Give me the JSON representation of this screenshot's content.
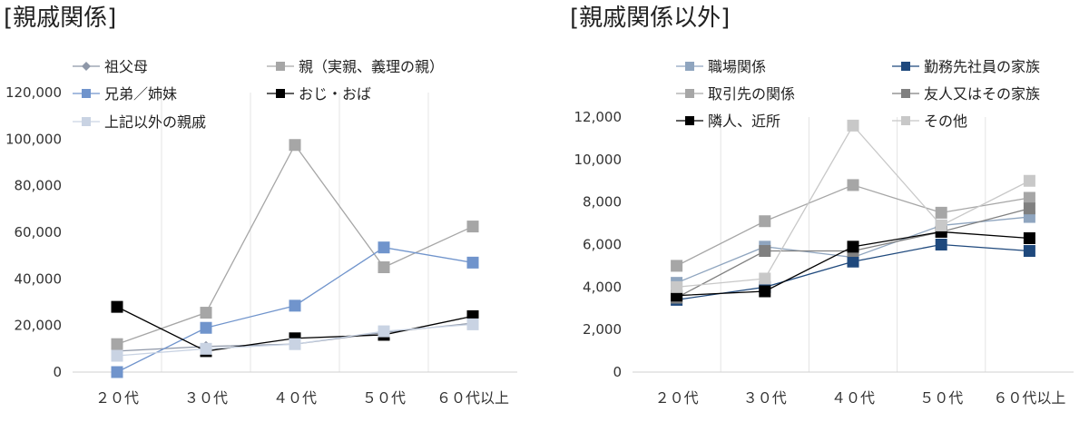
{
  "chart_data": [
    {
      "type": "line",
      "title": "[親戚関係]",
      "categories": [
        "２０代",
        "３０代",
        "４０代",
        "５０代",
        "６０代以上"
      ],
      "ylim": [
        0,
        120000
      ],
      "yticks": [
        "0",
        "20,000",
        "40,000",
        "60,000",
        "80,000",
        "100,000",
        "120,000"
      ],
      "grid": "vertical",
      "legend": "top",
      "series": [
        {
          "name": "祖父母",
          "color": "#8e97a8",
          "marker": "diamond",
          "values": [
            9000,
            11000,
            12000,
            17000,
            21000
          ]
        },
        {
          "name": "親（実親、義理の親）",
          "color": "#a6a6a6",
          "marker": "square",
          "values": [
            12000,
            25500,
            97500,
            45000,
            62500
          ]
        },
        {
          "name": "兄弟／姉妹",
          "color": "#7094cc",
          "marker": "square",
          "values": [
            0,
            19000,
            28500,
            53500,
            47000
          ]
        },
        {
          "name": "おじ・おば",
          "color": "#000000",
          "marker": "square",
          "values": [
            28000,
            9000,
            14500,
            16000,
            24000
          ]
        },
        {
          "name": "上記以外の親戚",
          "color": "#c9d3e3",
          "marker": "square",
          "values": [
            7000,
            10000,
            12000,
            17500,
            20500
          ]
        }
      ]
    },
    {
      "type": "line",
      "title": "[親戚関係以外]",
      "categories": [
        "２０代",
        "３０代",
        "４０代",
        "５０代",
        "６０代以上"
      ],
      "ylim": [
        0,
        12000
      ],
      "yticks": [
        "0",
        "2,000",
        "4,000",
        "6,000",
        "8,000",
        "10,000",
        "12,000"
      ],
      "grid": "vertical",
      "legend": "top",
      "series": [
        {
          "name": "職場関係",
          "color": "#8fa5bf",
          "marker": "square",
          "values": [
            4200,
            5900,
            5400,
            6900,
            7300
          ]
        },
        {
          "name": "勤務先社員の家族",
          "color": "#1f497d",
          "marker": "square",
          "values": [
            3400,
            4000,
            5200,
            6000,
            5700
          ]
        },
        {
          "name": "取引先の関係",
          "color": "#a6a6a6",
          "marker": "square",
          "values": [
            5000,
            7100,
            8800,
            7500,
            8200
          ]
        },
        {
          "name": "友人又はその家族",
          "color": "#808080",
          "marker": "square",
          "values": [
            3500,
            5700,
            5700,
            6600,
            7700
          ]
        },
        {
          "name": "隣人、近所",
          "color": "#000000",
          "marker": "square",
          "values": [
            3600,
            3800,
            5900,
            6600,
            6300
          ]
        },
        {
          "name": "その他",
          "color": "#c8c8c8",
          "marker": "square",
          "values": [
            4000,
            4400,
            11600,
            6900,
            9000
          ]
        }
      ]
    }
  ]
}
